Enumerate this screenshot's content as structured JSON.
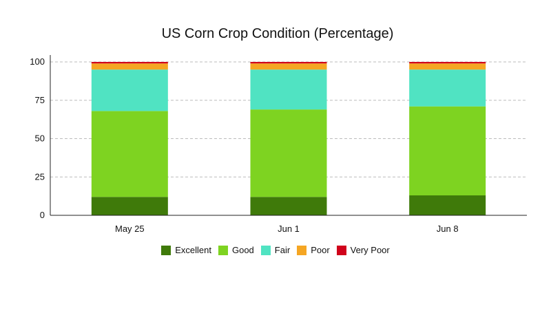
{
  "chart_data": {
    "type": "bar",
    "stacked": true,
    "title": "US Corn Crop Condition (Percentage)",
    "xlabel": "",
    "ylabel": "",
    "ylim": [
      0,
      100
    ],
    "yticks": [
      0,
      25,
      50,
      75,
      100
    ],
    "grid": "horizontal dashed",
    "legend_position": "bottom",
    "categories": [
      "May 25",
      "Jun 1",
      "Jun 8"
    ],
    "series": [
      {
        "name": "Excellent",
        "color": "#3F7A0A",
        "values": [
          12,
          12,
          13
        ]
      },
      {
        "name": "Good",
        "color": "#7ED321",
        "values": [
          56,
          57,
          58
        ]
      },
      {
        "name": "Fair",
        "color": "#50E3C2",
        "values": [
          27,
          26,
          24
        ]
      },
      {
        "name": "Poor",
        "color": "#F5A623",
        "values": [
          4,
          4,
          4
        ]
      },
      {
        "name": "Very Poor",
        "color": "#D0021B",
        "values": [
          1,
          1,
          1
        ]
      }
    ]
  }
}
